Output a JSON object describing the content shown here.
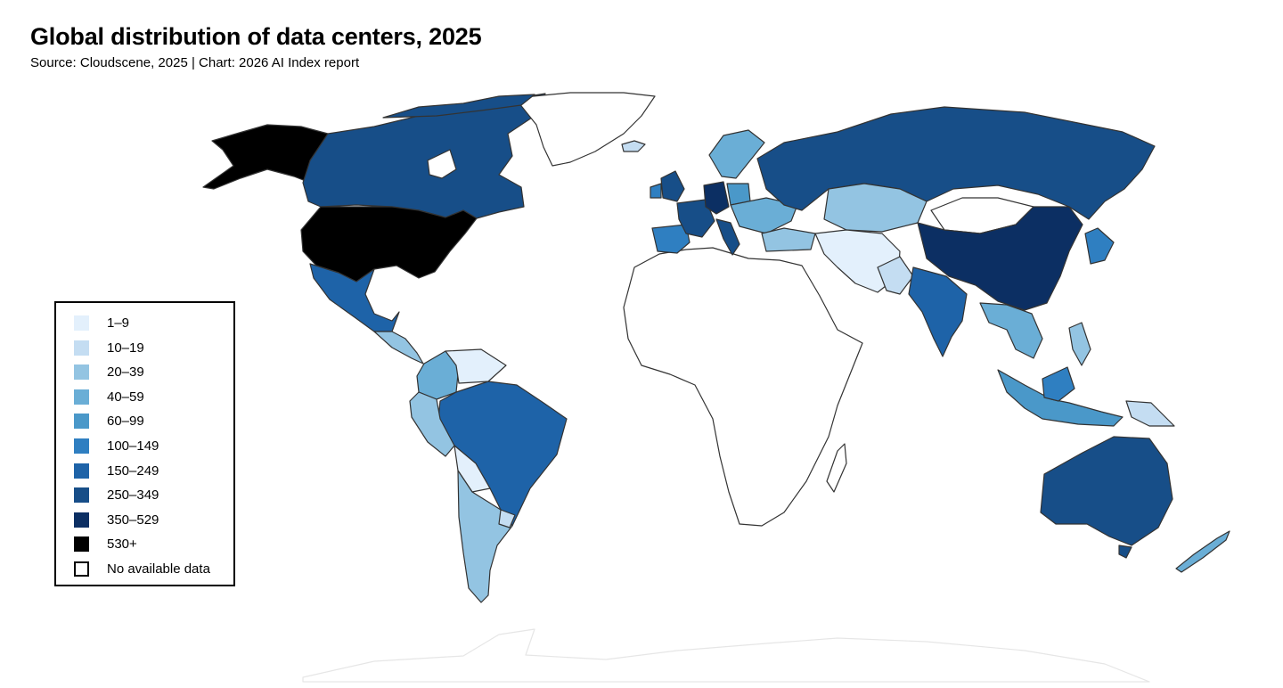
{
  "title": "Global distribution of data centers, 2025",
  "subtitle": "Source: Cloudscene, 2025 | Chart: 2026 AI Index report",
  "colors": {
    "c1": "#e3f0fc",
    "c2": "#c4ddf2",
    "c3": "#93c4e2",
    "c4": "#6aaed6",
    "c5": "#4a98c9",
    "c6": "#2f7fc1",
    "c7": "#1e63a8",
    "c8": "#174e88",
    "c9": "#0c2f63",
    "c10": "#000000",
    "none": "#ffffff",
    "border": "#3a3a3a"
  },
  "legend": [
    {
      "label": "1–9",
      "color": "#e3f0fc"
    },
    {
      "label": "10–19",
      "color": "#c4ddf2"
    },
    {
      "label": "20–39",
      "color": "#93c4e2"
    },
    {
      "label": "40–59",
      "color": "#6aaed6"
    },
    {
      "label": "60–99",
      "color": "#4a98c9"
    },
    {
      "label": "100–149",
      "color": "#2f7fc1"
    },
    {
      "label": "150–249",
      "color": "#1e63a8"
    },
    {
      "label": "250–349",
      "color": "#174e88"
    },
    {
      "label": "350–529",
      "color": "#0c2f63"
    },
    {
      "label": "530+",
      "color": "#000000"
    },
    {
      "label": "No available data",
      "color": "none"
    }
  ]
}
